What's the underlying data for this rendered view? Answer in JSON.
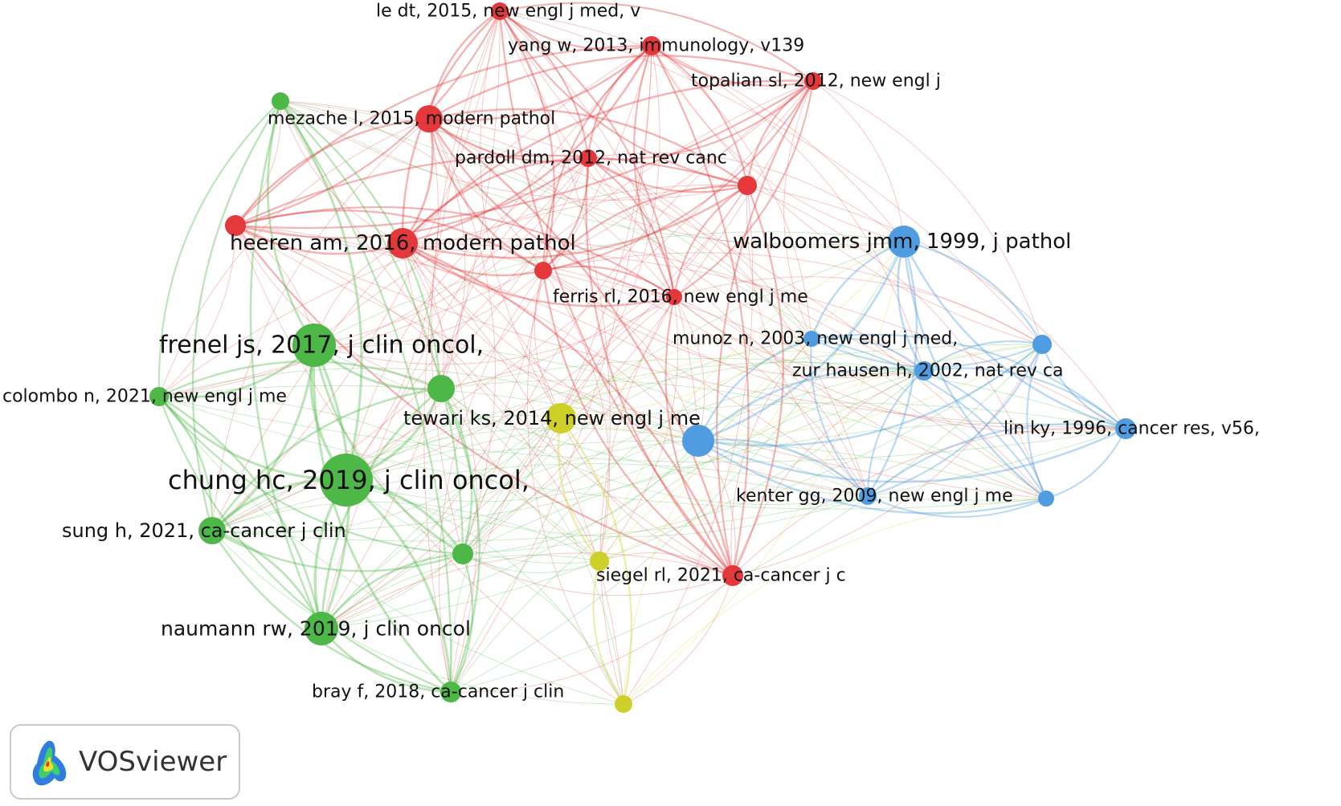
{
  "brand": {
    "name": "VOSviewer"
  },
  "cluster_colors": {
    "red": "#e5383b",
    "green": "#4db848",
    "blue": "#4f9de0",
    "yellow": "#cfcf2a"
  },
  "nodes": [
    {
      "id": "n1",
      "label": "le dt, 2015, new engl j med, v",
      "cluster": "red"
    },
    {
      "id": "n2",
      "label": "yang w, 2013, immunology, v139",
      "cluster": "red"
    },
    {
      "id": "n3",
      "label": "topalian sl, 2012, new engl j",
      "cluster": "red"
    },
    {
      "id": "n4",
      "label": "mezache l, 2015, modern pathol",
      "cluster": "red"
    },
    {
      "id": "n5",
      "label": "pardoll dm, 2012, nat rev canc",
      "cluster": "red"
    },
    {
      "id": "n6",
      "label": "",
      "cluster": "red"
    },
    {
      "id": "n7",
      "label": "",
      "cluster": "red"
    },
    {
      "id": "n8",
      "label": "heeren am, 2016, modern pathol",
      "cluster": "red"
    },
    {
      "id": "n9",
      "label": "",
      "cluster": "red"
    },
    {
      "id": "n10",
      "label": "ferris rl, 2016, new engl j me",
      "cluster": "red"
    },
    {
      "id": "n11",
      "label": "siegel rl, 2021, ca-cancer j c",
      "cluster": "red"
    },
    {
      "id": "g1",
      "label": "",
      "cluster": "green"
    },
    {
      "id": "g2",
      "label": "frenel js, 2017, j clin oncol,",
      "cluster": "green"
    },
    {
      "id": "g3",
      "label": "",
      "cluster": "green"
    },
    {
      "id": "g4",
      "label": "colombo n, 2021, new engl j me",
      "cluster": "green"
    },
    {
      "id": "g5",
      "label": "chung hc, 2019, j clin oncol,",
      "cluster": "green"
    },
    {
      "id": "g6",
      "label": "sung h, 2021, ca-cancer j clin",
      "cluster": "green"
    },
    {
      "id": "g7",
      "label": "",
      "cluster": "green"
    },
    {
      "id": "g8",
      "label": "naumann rw, 2019, j clin oncol",
      "cluster": "green"
    },
    {
      "id": "g9",
      "label": "bray f, 2018, ca-cancer j clin",
      "cluster": "green"
    },
    {
      "id": "y1",
      "label": "tewari ks, 2014, new engl j me",
      "cluster": "yellow"
    },
    {
      "id": "y2",
      "label": "",
      "cluster": "yellow"
    },
    {
      "id": "y3",
      "label": "",
      "cluster": "yellow"
    },
    {
      "id": "b1",
      "label": "walboomers jmm, 1999, j pathol",
      "cluster": "blue"
    },
    {
      "id": "b2",
      "label": "munoz n, 2003, new engl j med,",
      "cluster": "blue"
    },
    {
      "id": "b3",
      "label": "",
      "cluster": "blue"
    },
    {
      "id": "b4",
      "label": "zur hausen h, 2002, nat rev ca",
      "cluster": "blue"
    },
    {
      "id": "b5",
      "label": "",
      "cluster": "blue"
    },
    {
      "id": "b6",
      "label": "lin ky, 1996, cancer res, v56,",
      "cluster": "blue"
    },
    {
      "id": "b7",
      "label": "kenter gg, 2009, new engl j me",
      "cluster": "blue"
    },
    {
      "id": "b8",
      "label": "",
      "cluster": "blue"
    }
  ]
}
